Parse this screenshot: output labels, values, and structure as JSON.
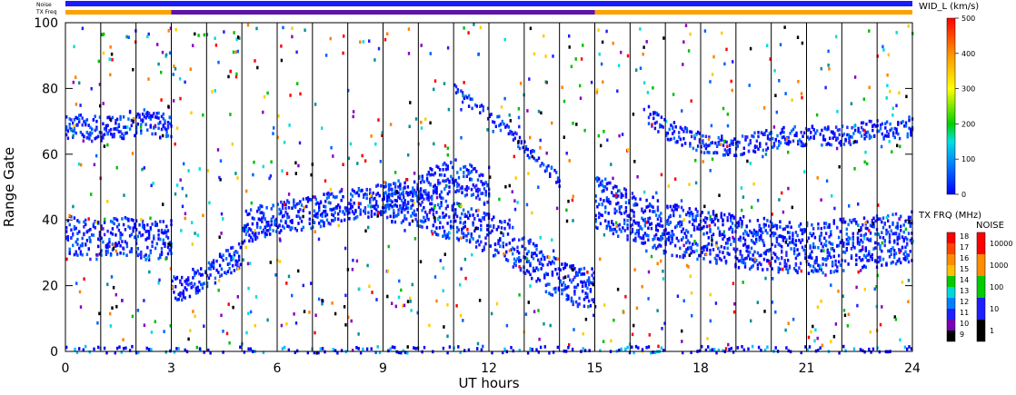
{
  "chart_data": {
    "type": "scatter",
    "subtype": "radar range-time plot",
    "xlabel": "UT hours",
    "ylabel": "Range Gate",
    "xlim": [
      0,
      24
    ],
    "ylim": [
      0,
      100
    ],
    "x_ticks": [
      0,
      3,
      6,
      9,
      12,
      15,
      18,
      21,
      24
    ],
    "y_ticks": [
      0,
      20,
      40,
      60,
      80,
      100
    ],
    "vertical_lines_every_hours": 1,
    "strips": {
      "noise_label": "Noise",
      "txfreq_label": "TX Freq",
      "txfreq_segments": [
        {
          "start": 0,
          "end": 3,
          "mhz": 15.3
        },
        {
          "start": 3,
          "end": 15,
          "mhz": 10.9
        },
        {
          "start": 15,
          "end": 24,
          "mhz": 15.3
        }
      ]
    },
    "colorbars": {
      "width": {
        "title": "WID_L (km/s)",
        "ticks": [
          "500",
          "400",
          "300",
          "200",
          "100",
          "0"
        ],
        "range": [
          0,
          500
        ]
      },
      "txfreq": {
        "title": "TX FRQ (MHz)",
        "ticks": [
          "18",
          "17",
          "16",
          "15",
          "14",
          "13",
          "12",
          "11",
          "10",
          "9"
        ],
        "colors": [
          "#ff0000",
          "#ff4400",
          "#ff8c00",
          "#ffc000",
          "#00cc00",
          "#00d8d8",
          "#0080ff",
          "#2020ff",
          "#7a00b8",
          "#000000"
        ]
      },
      "noise": {
        "title": "NOISE",
        "ticks": [
          "10000",
          "1000",
          "100",
          "10",
          "1"
        ],
        "colors": [
          "#ff0000",
          "#ff8c00",
          "#00cc00",
          "#1e1eff",
          "#000000"
        ]
      }
    },
    "echo_bands": [
      {
        "t": [
          0.0,
          0.2,
          0.6,
          1.0,
          1.5,
          2.0,
          2.4,
          3.0
        ],
        "gate": [
          68,
          69,
          68,
          68,
          69,
          70,
          70,
          68
        ],
        "width": 4
      },
      {
        "t": [
          0.0,
          0.4,
          0.8,
          1.2,
          1.6,
          2.0,
          2.4,
          3.0
        ],
        "gate": [
          36,
          35,
          34,
          35,
          36,
          35,
          34,
          35
        ],
        "width": 6
      },
      {
        "t": [
          3.0,
          3.5,
          4.0,
          4.5,
          5.0
        ],
        "gate": [
          19,
          21,
          24,
          27,
          30
        ],
        "width": 4
      },
      {
        "t": [
          5.0,
          5.5,
          6.0,
          6.5,
          7.0,
          7.5,
          8.0,
          8.5,
          9.0,
          9.5,
          10.0,
          10.5,
          11.0,
          11.5,
          12.0
        ],
        "gate": [
          38,
          40,
          41,
          42,
          43,
          44,
          45,
          46,
          47,
          48,
          50,
          52,
          54,
          52,
          48
        ],
        "width": 5
      },
      {
        "t": [
          9.0,
          9.5,
          10.0,
          10.5,
          11.0,
          11.5,
          12.0,
          12.5,
          13.0,
          13.5,
          14.0,
          14.5,
          15.0
        ],
        "gate": [
          46,
          45,
          44,
          42,
          40,
          38,
          36,
          34,
          30,
          25,
          22,
          20,
          20
        ],
        "width": 6
      },
      {
        "t": [
          11.0,
          11.8,
          12.5,
          13.2,
          14.0
        ],
        "gate": [
          80,
          74,
          68,
          60,
          52
        ],
        "width": 2
      },
      {
        "t": [
          15.0,
          15.5,
          16.0,
          16.5,
          17.0,
          17.5,
          18.0,
          18.5,
          19.0,
          19.5,
          20.0,
          20.5,
          21.0,
          21.5,
          22.0,
          22.5,
          23.0,
          23.5,
          24.0
        ],
        "gate": [
          46,
          44,
          42,
          40,
          38,
          37,
          36,
          35,
          34,
          33,
          33,
          32,
          32,
          32,
          33,
          33,
          34,
          35,
          36
        ],
        "width": 8
      },
      {
        "t": [
          16.5,
          17.0,
          17.5,
          18.0,
          18.5,
          19.0,
          19.5,
          20.0,
          20.5,
          21.0,
          21.5,
          22.0,
          22.5,
          23.0,
          23.5,
          24.0
        ],
        "gate": [
          72,
          68,
          66,
          64,
          63,
          63,
          64,
          65,
          66,
          66,
          66,
          66,
          67,
          68,
          68,
          69
        ],
        "width": 3
      }
    ]
  }
}
